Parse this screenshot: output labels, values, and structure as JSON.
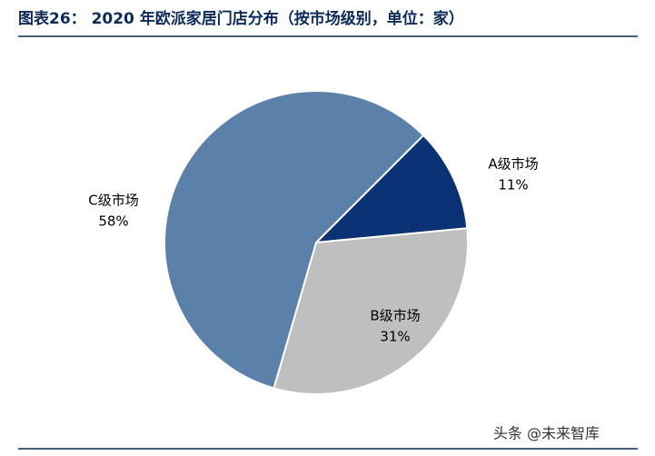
{
  "chart_data": {
    "type": "pie",
    "title": "图表26：  2020 年欧派家居门店分布（按市场级别，单位：家）",
    "categories": [
      "A级市场",
      "B级市场",
      "C级市场"
    ],
    "values": [
      11,
      31,
      58
    ],
    "value_labels": [
      "11%",
      "31%",
      "58%"
    ],
    "colors": [
      "#0a3274",
      "#bfbfbf",
      "#5b80aa"
    ],
    "watermark": "头条 @未来智库"
  }
}
